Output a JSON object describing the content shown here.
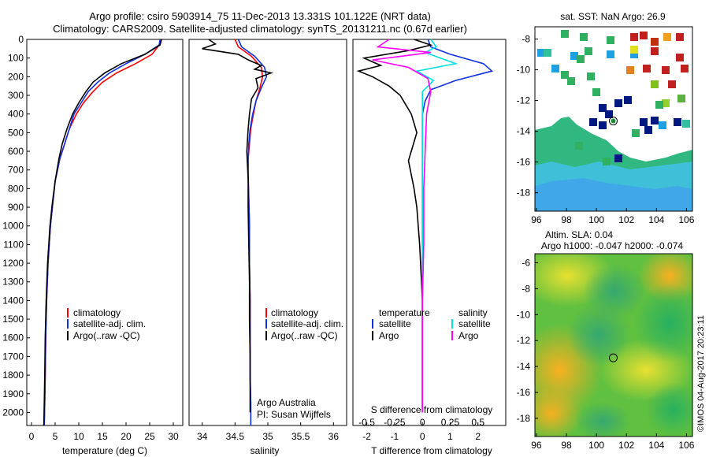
{
  "header": {
    "line1": "Argo profile: csiro 5903914_75 11-Dec-2013 13.331S 101.122E (NRT data)",
    "line2": "Climatology: CARS2009. Satellite-adjusted climatology: synTS_20131211.nc (0.67d earlier)"
  },
  "colors": {
    "climatology": "#ff0000",
    "satellite": "#1030e0",
    "argo": "#000000",
    "salinity_sat": "#00e0e0",
    "salinity_argo": "#ff00ff"
  },
  "depth_axis": {
    "ylim": [
      0,
      2070
    ],
    "ticks": [
      0,
      100,
      200,
      300,
      400,
      500,
      600,
      700,
      800,
      900,
      1000,
      1100,
      1200,
      1300,
      1400,
      1500,
      1600,
      1700,
      1800,
      1900,
      2000
    ]
  },
  "chart_data": [
    {
      "type": "line",
      "id": "temperature",
      "xlabel": "temperature (deg C)",
      "xlim": [
        -1,
        32
      ],
      "xticks": [
        0,
        5,
        10,
        15,
        20,
        25,
        30
      ],
      "legend": [
        "climatology",
        "satellite-adj. clim.",
        "Argo(..raw -QC)"
      ],
      "series": [
        {
          "name": "climatology",
          "color": "#ff0000",
          "x": [
            27.3,
            27,
            25.5,
            22,
            18,
            15,
            13,
            11,
            9.5,
            8,
            7,
            6,
            5,
            4.5,
            4,
            3.5,
            3.2,
            3,
            2.9,
            2.8,
            2.7
          ],
          "y": [
            0,
            30,
            80,
            130,
            180,
            230,
            280,
            340,
            400,
            480,
            560,
            640,
            760,
            880,
            1000,
            1200,
            1400,
            1600,
            1800,
            1950,
            2070
          ]
        },
        {
          "name": "satellite-adj. clim.",
          "color": "#1030e0",
          "x": [
            27.2,
            27,
            24,
            20,
            16.5,
            14,
            12,
            10.5,
            9,
            8,
            7,
            6,
            5,
            4.5,
            4,
            3.5,
            3.2,
            3,
            2.9,
            2.8,
            2.7
          ],
          "y": [
            0,
            30,
            80,
            130,
            180,
            230,
            280,
            340,
            400,
            480,
            560,
            640,
            760,
            880,
            1000,
            1200,
            1400,
            1600,
            1800,
            1950,
            2070
          ]
        },
        {
          "name": "Argo(..raw -QC)",
          "color": "#000000",
          "x": [
            27.5,
            27.2,
            24,
            19,
            15.5,
            13,
            11.5,
            10,
            8.7,
            7.5,
            6.5,
            5.8,
            5,
            4.4,
            3.9,
            3.4,
            3.1,
            2.9,
            2.8,
            2.7,
            2.6
          ],
          "y": [
            0,
            30,
            80,
            130,
            180,
            230,
            280,
            340,
            400,
            480,
            560,
            640,
            760,
            880,
            1000,
            1200,
            1400,
            1600,
            1800,
            1950,
            2070
          ]
        }
      ]
    },
    {
      "type": "line",
      "id": "salinity",
      "xlabel": "salinity",
      "xlim": [
        33.8,
        36.2
      ],
      "xticks": [
        34,
        34.5,
        35,
        35.5,
        36
      ],
      "legend": [
        "climatology",
        "satellite-adj. clim.",
        "Argo(..raw -QC)"
      ],
      "series": [
        {
          "name": "climatology",
          "color": "#ff0000",
          "x": [
            34.5,
            34.55,
            34.75,
            34.9,
            34.92,
            34.88,
            34.82,
            34.78,
            34.74,
            34.72,
            34.7,
            34.7,
            34.71,
            34.72,
            34.72,
            34.73,
            34.73,
            34.73,
            34.74,
            34.74,
            34.74
          ],
          "y": [
            0,
            40,
            90,
            150,
            200,
            260,
            330,
            400,
            480,
            560,
            640,
            720,
            850,
            1000,
            1200,
            1400,
            1600,
            1800,
            1950,
            2000,
            2070
          ]
        },
        {
          "name": "satellite-adj. clim.",
          "color": "#1030e0",
          "x": [
            34.55,
            34.6,
            34.8,
            34.95,
            34.98,
            34.9,
            34.82,
            34.77,
            34.73,
            34.71,
            34.7,
            34.7,
            34.71,
            34.72,
            34.72,
            34.73,
            34.73,
            34.73,
            34.74,
            34.74,
            34.74
          ],
          "y": [
            0,
            40,
            90,
            150,
            200,
            260,
            330,
            400,
            480,
            560,
            640,
            720,
            850,
            1000,
            1200,
            1400,
            1600,
            1800,
            1950,
            2000,
            2070
          ]
        },
        {
          "name": "Argo(..raw -QC)",
          "color": "#000000",
          "x": [
            34.1,
            34.2,
            34.0,
            34.55,
            34.7,
            34.9,
            34.8,
            35.05,
            34.82,
            34.85,
            34.75,
            34.72,
            34.7,
            34.68,
            34.7,
            34.7,
            34.71,
            34.72,
            34.72,
            34.73,
            34.73,
            34.73
          ],
          "y": [
            0,
            25,
            50,
            80,
            110,
            140,
            160,
            180,
            210,
            260,
            320,
            400,
            480,
            600,
            750,
            900,
            1100,
            1300,
            1500,
            1700,
            1900,
            2000
          ]
        }
      ]
    },
    {
      "type": "line",
      "id": "difference",
      "xlabel": "T difference from climatology",
      "xlabel_top": "S difference from climatology",
      "xlim": [
        -2.5,
        3
      ],
      "xticks": [
        -2,
        -1,
        0,
        1,
        2
      ],
      "top_ticks": [
        "-0.5",
        "-0.25",
        "0",
        "0.25",
        "0.5"
      ],
      "top_tick_pos": [
        -2,
        -1,
        0,
        1,
        2
      ],
      "legend_headers": [
        "temperature",
        "salinity"
      ],
      "legend": [
        "satellite",
        "Argo",
        "satellite",
        "Argo"
      ],
      "series": [
        {
          "name": "temperature satellite",
          "color": "#1030e0",
          "x": [
            0.2,
            0.3,
            1,
            2.2,
            2.5,
            1.2,
            0.3,
            0.1,
            0,
            0,
            0,
            0,
            0,
            0,
            0,
            0
          ],
          "y": [
            0,
            40,
            80,
            130,
            170,
            220,
            270,
            330,
            400,
            500,
            700,
            900,
            1200,
            1500,
            1800,
            2000
          ]
        },
        {
          "name": "temperature Argo",
          "color": "#000000",
          "x": [
            -0.3,
            0.3,
            -0.5,
            -2.1,
            -1.5,
            -2.3,
            -1.8,
            -1.2,
            -0.8,
            -0.4,
            -0.2,
            -0.5,
            -0.3,
            -0.2,
            -0.1,
            0,
            0,
            0
          ],
          "y": [
            0,
            30,
            60,
            100,
            140,
            170,
            200,
            250,
            300,
            400,
            500,
            650,
            800,
            900,
            1100,
            1400,
            1700,
            2000
          ]
        },
        {
          "name": "salinity satellite",
          "color": "#00e0e0",
          "x": [
            0.3,
            0.5,
            0.1,
            1.2,
            -0.2,
            0.4,
            0,
            0,
            0,
            0,
            0,
            0,
            0,
            0
          ],
          "y": [
            0,
            40,
            70,
            130,
            170,
            220,
            280,
            400,
            600,
            800,
            1100,
            1400,
            1700,
            2000
          ]
        },
        {
          "name": "salinity Argo",
          "color": "#ff00ff",
          "x": [
            -1.2,
            -1.6,
            0.3,
            -1.8,
            -0.5,
            0.2,
            0.3,
            0.15,
            0.1,
            0.05,
            0.05,
            0,
            0,
            0
          ],
          "y": [
            0,
            40,
            70,
            110,
            150,
            210,
            280,
            400,
            600,
            800,
            1100,
            1400,
            1700,
            2000
          ]
        }
      ]
    },
    {
      "type": "heatmap",
      "id": "sst-map",
      "title": "sat. SST: NaN Argo: 26.9",
      "xticks": [
        96,
        98,
        100,
        102,
        104,
        106
      ],
      "yticks": [
        -8,
        -10,
        -12,
        -14,
        -16,
        -18
      ],
      "xlim": [
        95.9,
        106.4
      ],
      "ylim": [
        -19.2,
        -7.2
      ],
      "marker": {
        "lon": 101.122,
        "lat": -13.331
      }
    },
    {
      "type": "heatmap",
      "id": "sla-map",
      "title1": "Altim. SLA: 0.04",
      "title2": "Argo h1000: -0.047 h2000: -0.074",
      "xticks": [
        96,
        98,
        100,
        102,
        104,
        106
      ],
      "yticks": [
        -6,
        -8,
        -10,
        -12,
        -14,
        -16,
        -18
      ],
      "xlim": [
        95.9,
        106.4
      ],
      "ylim": [
        -19.4,
        -5.3
      ],
      "marker": {
        "lon": 101.122,
        "lat": -13.331
      }
    }
  ],
  "credit": "©IMOS 04-Aug-2017 20:23:11"
}
